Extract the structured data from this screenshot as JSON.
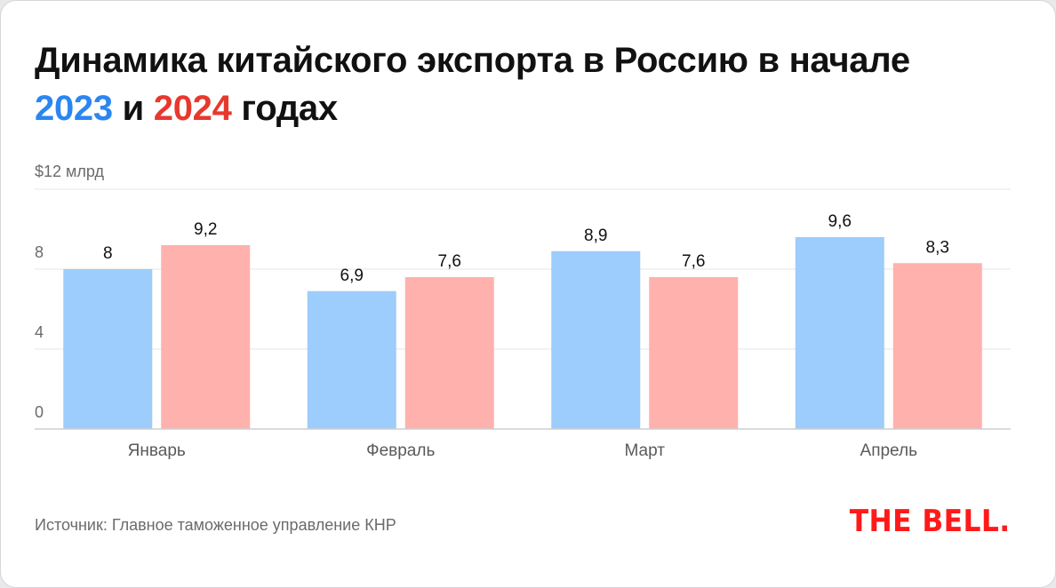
{
  "title": {
    "line1": "Динамика китайского экспорта в Россию в начале",
    "year1": "2023",
    "conj": "и",
    "year2": "2024",
    "suffix": "годах"
  },
  "colors": {
    "series2023": "#9ccdfc",
    "series2024": "#ffb1ae",
    "year2023_text": "#2b86f1",
    "year2024_text": "#e8382e",
    "logo": "#ff1a1a"
  },
  "chart_data": {
    "type": "bar",
    "title": "Динамика китайского экспорта в Россию в начале 2023 и 2024 годах",
    "xlabel": "",
    "ylabel": "$12 млрд",
    "ylim": [
      0,
      12
    ],
    "yticks": [
      0,
      4,
      8
    ],
    "ytick_labels": [
      "0",
      "4",
      "8"
    ],
    "top_label": "$12 млрд",
    "grid": true,
    "categories": [
      "Январь",
      "Февраль",
      "Март",
      "Апрель"
    ],
    "series": [
      {
        "name": "2023",
        "values": [
          8,
          6.9,
          8.9,
          9.6
        ],
        "labels": [
          "8",
          "6,9",
          "8,9",
          "9,6"
        ]
      },
      {
        "name": "2024",
        "values": [
          9.2,
          7.6,
          7.6,
          8.3
        ],
        "labels": [
          "9,2",
          "7,6",
          "7,6",
          "8,3"
        ]
      }
    ]
  },
  "source": "Источник: Главное таможенное управление КНР",
  "logo": "THE BELL."
}
